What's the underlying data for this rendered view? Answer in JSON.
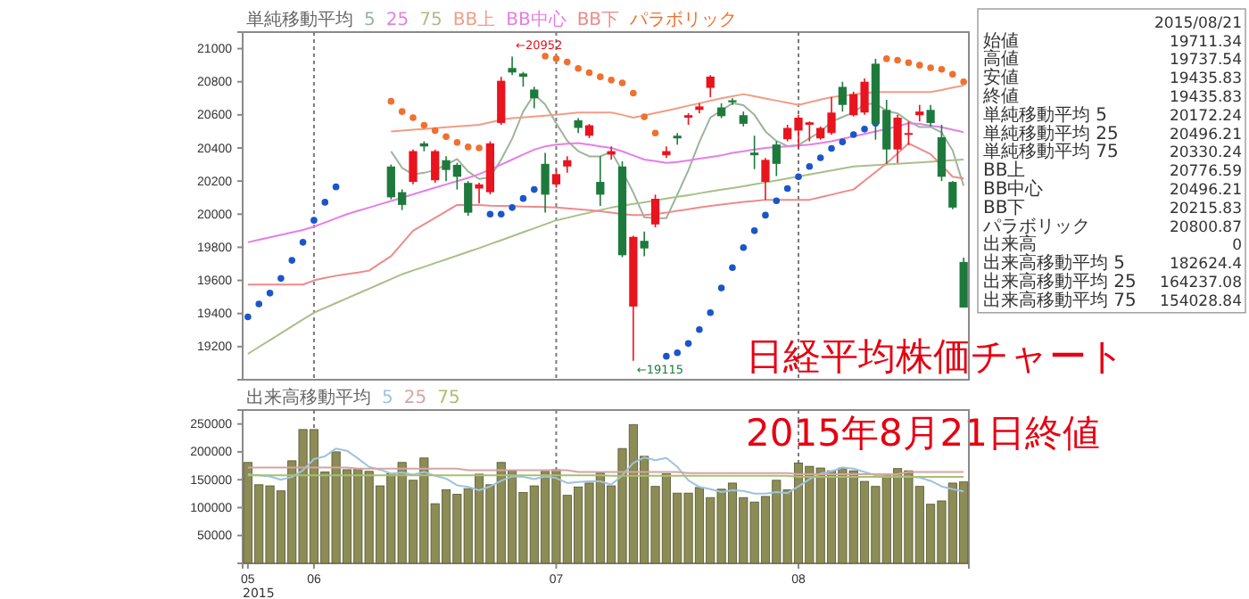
{
  "chart_data": [
    {
      "type": "candlestick",
      "title": "日経平均株価チャート",
      "subtitle": "2015年8月21日終値",
      "categories": [
        "05",
        null,
        null,
        null,
        null,
        null,
        "06",
        null,
        null,
        null,
        null,
        null,
        null,
        null,
        null,
        null,
        null,
        null,
        null,
        null,
        null,
        null,
        null,
        null,
        null,
        null,
        null,
        null,
        "07",
        null,
        null,
        null,
        null,
        null,
        null,
        null,
        null,
        null,
        null,
        null,
        null,
        null,
        null,
        null,
        null,
        null,
        null,
        null,
        null,
        null,
        "08",
        null,
        null,
        null,
        null,
        null,
        null,
        null,
        null,
        null,
        null,
        null,
        null,
        null,
        null,
        null
      ],
      "tick_labels": "y",
      "ylim": [
        19000,
        21100
      ],
      "yticks": [
        19200,
        19400,
        19600,
        19800,
        20000,
        20200,
        20400,
        20600,
        20800,
        21000
      ],
      "ohlc": [
        null,
        null,
        null,
        null,
        null,
        null,
        null,
        null,
        null,
        null,
        null,
        null,
        null,
        [
          20288,
          20300,
          20090,
          20102
        ],
        [
          20133,
          20150,
          20025,
          20056
        ],
        [
          20195,
          20390,
          20180,
          20381
        ],
        [
          20428,
          20440,
          20380,
          20409
        ],
        [
          20205,
          20390,
          20190,
          20381
        ],
        [
          20326,
          20350,
          20200,
          20267
        ],
        [
          20298,
          20310,
          20149,
          20226
        ],
        [
          20189,
          20200,
          19990,
          20009
        ],
        [
          20155,
          20190,
          20065,
          20180
        ],
        [
          20133,
          20440,
          20120,
          20428
        ],
        [
          20551,
          20830,
          20540,
          20806
        ],
        [
          20883,
          20952,
          20840,
          20856
        ],
        [
          20850,
          20860,
          20770,
          20830
        ],
        [
          20753,
          20770,
          20640,
          20700
        ],
        [
          20304,
          20370,
          20010,
          20118
        ],
        [
          20180,
          20270,
          20160,
          20242
        ],
        [
          20288,
          20350,
          20250,
          20326
        ],
        [
          20567,
          20580,
          20490,
          20521
        ],
        [
          20474,
          20545,
          20460,
          20537
        ],
        [
          20195,
          20350,
          20050,
          20118
        ],
        [
          20360,
          20410,
          20330,
          20381
        ],
        [
          20288,
          20319,
          19740,
          19752
        ],
        [
          19442,
          19870,
          19115,
          19863
        ],
        [
          19839,
          19895,
          19746,
          19793
        ],
        [
          19938,
          20118,
          19920,
          20093
        ],
        [
          20356,
          20410,
          20340,
          20381
        ],
        [
          20474,
          20490,
          20420,
          20458
        ],
        [
          20583,
          20610,
          20540,
          20598
        ],
        [
          20630,
          20670,
          20610,
          20651
        ],
        [
          20763,
          20840,
          20707,
          20831
        ],
        [
          20645,
          20670,
          20580,
          20592
        ],
        [
          20688,
          20700,
          20660,
          20676
        ],
        [
          20598,
          20620,
          20530,
          20546
        ],
        [
          20372,
          20474,
          20272,
          20356
        ],
        [
          20195,
          20340,
          20087,
          20328
        ],
        [
          20421,
          20440,
          20230,
          20304
        ],
        [
          20453,
          20540,
          20440,
          20521
        ],
        [
          20505,
          20600,
          20400,
          20583
        ],
        [
          20540,
          20560,
          20440,
          20555
        ],
        [
          20458,
          20530,
          20450,
          20521
        ],
        [
          20490,
          20707,
          20480,
          20614
        ],
        [
          20769,
          20800,
          20620,
          20660
        ],
        [
          20598,
          20740,
          20590,
          20725
        ],
        [
          20614,
          20820,
          20600,
          20800
        ],
        [
          20909,
          20939,
          20450,
          20546
        ],
        [
          20630,
          20691,
          20304,
          20391
        ],
        [
          20391,
          20600,
          20310,
          20583
        ],
        [
          20480,
          20560,
          20420,
          20490
        ],
        [
          20598,
          20660,
          20560,
          20620
        ],
        [
          20630,
          20660,
          20530,
          20551
        ],
        [
          20465,
          20540,
          20200,
          20226
        ],
        [
          20195,
          20200,
          20030,
          20040
        ],
        [
          19711.34,
          19737.54,
          19435.83,
          19435.83
        ]
      ],
      "colors": [
        null,
        null,
        null,
        null,
        null,
        null,
        null,
        null,
        null,
        null,
        null,
        null,
        null,
        "#1e7a3c",
        "#1e7a3c",
        "#e8141e",
        "#1e7a3c",
        "#e8141e",
        "#1e7a3c",
        "#1e7a3c",
        "#1e7a3c",
        "#e8141e",
        "#e8141e",
        "#e8141e",
        "#1e7a3c",
        "#1e7a3c",
        "#1e7a3c",
        "#1e7a3c",
        "#e8141e",
        "#e8141e",
        "#1e7a3c",
        "#e8141e",
        "#1e7a3c",
        "#e8141e",
        "#1e7a3c",
        "#e8141e",
        "#1e7a3c",
        "#e8141e",
        "#e8141e",
        "#1e7a3c",
        "#e8141e",
        "#e8141e",
        "#e8141e",
        "#1e7a3c",
        "#1e7a3c",
        "#1e7a3c",
        "#1e7a3c",
        "#e8141e",
        "#1e7a3c",
        "#e8141e",
        "#e8141e",
        "#e8141e",
        "#e8141e",
        "#e8141e",
        "#1e7a3c",
        "#e8141e",
        "#e8141e",
        "#1e7a3c",
        "#1e7a3c",
        "#e8141e",
        "#e8141e",
        "#e8141e",
        "#1e7a3c",
        "#1e7a3c",
        "#1e7a3c",
        "#1e7a3c"
      ],
      "series": [
        {
          "name": "5",
          "type": "line",
          "color": "#9db39d",
          "values": [
            null,
            null,
            null,
            null,
            null,
            null,
            null,
            null,
            null,
            null,
            null,
            null,
            null,
            20380,
            20280,
            20240,
            20250,
            20266,
            20299,
            20333,
            20258,
            20213,
            20222,
            20330,
            20456,
            20620,
            20724,
            20662,
            20549,
            20443,
            20381,
            20349,
            20349,
            20377,
            20262,
            20130,
            19981,
            19976,
            19976,
            20118,
            20265,
            20436,
            20584,
            20626,
            20670,
            20659,
            20600,
            20500,
            20442,
            20411,
            20418,
            20458,
            20497,
            20559,
            20587,
            20615,
            20664,
            20669,
            20624,
            20609,
            20562,
            20526,
            20527,
            20494,
            20385,
            20172
          ]
        },
        {
          "name": "25",
          "type": "line",
          "color": "#e67ee6",
          "values": [
            19830,
            19845,
            19860,
            19875,
            19890,
            19905,
            19925,
            19950,
            19975,
            20000,
            20020,
            20040,
            20060,
            20080,
            20100,
            20120,
            20140,
            20160,
            20180,
            20200,
            20220,
            20242,
            20270,
            20300,
            20330,
            20360,
            20390,
            20410,
            20420,
            20425,
            20430,
            20420,
            20410,
            20400,
            20380,
            20355,
            20330,
            20320,
            20310,
            20315,
            20325,
            20335,
            20345,
            20355,
            20370,
            20380,
            20390,
            20400,
            20405,
            20410,
            20415,
            20420,
            20430,
            20440,
            20455,
            20470,
            20485,
            20500,
            20515,
            20530,
            20550,
            20545,
            20535,
            20525,
            20510,
            20496
          ]
        },
        {
          "name": "75",
          "type": "line",
          "color": "#a9bf8a",
          "values": [
            19156,
            19198,
            19239,
            19281,
            19322,
            19364,
            19405,
            19434,
            19463,
            19492,
            19521,
            19550,
            19579,
            19608,
            19637,
            19660,
            19682,
            19705,
            19727,
            19750,
            19773,
            19795,
            19819,
            19843,
            19867,
            19891,
            19915,
            19939,
            19963,
            19978,
            19994,
            20009,
            20025,
            20040,
            20051,
            20062,
            20072,
            20083,
            20094,
            20105,
            20115,
            20126,
            20137,
            20148,
            20158,
            20169,
            20180,
            20192,
            20204,
            20216,
            20228,
            20240,
            20252,
            20264,
            20276,
            20288,
            20292,
            20296,
            20301,
            20305,
            20309,
            20313,
            20317,
            20322,
            20326,
            20330
          ]
        },
        {
          "name": "BB上",
          "type": "line",
          "color": "#f29c86",
          "values": [
            null,
            null,
            null,
            null,
            null,
            null,
            null,
            null,
            null,
            null,
            null,
            null,
            null,
            20500,
            20505,
            20510,
            20515,
            20520,
            20525,
            20530,
            20535,
            20540,
            20555,
            20570,
            20580,
            20585,
            20590,
            20595,
            20600,
            20607,
            20614,
            20614,
            20614,
            20614,
            20600,
            20583,
            20597,
            20611,
            20625,
            20640,
            20655,
            20670,
            20685,
            20700,
            20712,
            20725,
            20712,
            20699,
            20686,
            20673,
            20660,
            20676,
            20692,
            20707,
            20715,
            20723,
            20731,
            20738,
            20738,
            20738,
            20738,
            20738,
            20738,
            20750,
            20765,
            20777
          ]
        },
        {
          "name": "BB下",
          "type": "line",
          "color": "#ee8a8a",
          "values": [
            19575,
            19575,
            19575,
            19575,
            19575,
            19575,
            19600,
            19615,
            19628,
            19638,
            19648,
            19659,
            19703,
            19746,
            19823,
            19900,
            19939,
            19978,
            20017,
            20056,
            20056,
            20056,
            20052,
            20050,
            20048,
            20046,
            20045,
            20043,
            20040,
            20035,
            20030,
            20025,
            20018,
            20009,
            20000,
            19995,
            19995,
            20000,
            20009,
            20020,
            20030,
            20040,
            20050,
            20058,
            20066,
            20074,
            20080,
            20087,
            20087,
            20087,
            20087,
            20087,
            20103,
            20118,
            20134,
            20149,
            20202,
            20255,
            20307,
            20367,
            20428,
            20395,
            20363,
            20295,
            20226,
            20216
          ]
        },
        {
          "name": "パラボリック",
          "type": "scatter",
          "marker": "circle",
          "color": "#f07030",
          "values": [
            19380,
            19458,
            19523,
            19612,
            19721,
            19830,
            19963,
            20072,
            20165,
            null,
            null,
            null,
            null,
            20682,
            20620,
            20583,
            20537,
            20505,
            20468,
            20434,
            20406,
            20400,
            20000,
            20000,
            20040,
            20095,
            20149,
            20955,
            20940,
            20920,
            20880,
            20855,
            20830,
            20810,
            20793,
            20731,
            20588,
            20490,
            19142,
            19163,
            19219,
            19303,
            19405,
            19554,
            19677,
            19798,
            19900,
            19994,
            20081,
            20155,
            20226,
            20288,
            20341,
            20397,
            20437,
            20481,
            20514,
            20549,
            20939,
            20930,
            20915,
            20900,
            20885,
            20875,
            20845,
            20800
          ],
          "colors": [
            "#1a56c8",
            "#1a56c8",
            "#1a56c8",
            "#1a56c8",
            "#1a56c8",
            "#1a56c8",
            "#1a56c8",
            "#1a56c8",
            "#1a56c8",
            null,
            null,
            null,
            null,
            "#f07030",
            "#f07030",
            "#f07030",
            "#f07030",
            "#f07030",
            "#f07030",
            "#f07030",
            "#f07030",
            "#f07030",
            "#1a56c8",
            "#1a56c8",
            "#1a56c8",
            "#1a56c8",
            "#1a56c8",
            "#f07030",
            "#f07030",
            "#f07030",
            "#f07030",
            "#f07030",
            "#f07030",
            "#f07030",
            "#f07030",
            "#f07030",
            "#f07030",
            "#f07030",
            "#1a56c8",
            "#1a56c8",
            "#1a56c8",
            "#1a56c8",
            "#1a56c8",
            "#1a56c8",
            "#1a56c8",
            "#1a56c8",
            "#1a56c8",
            "#1a56c8",
            "#1a56c8",
            "#1a56c8",
            "#1a56c8",
            "#1a56c8",
            "#1a56c8",
            "#1a56c8",
            "#1a56c8",
            "#1a56c8",
            "#1a56c8",
            "#1a56c8",
            "#f07030",
            "#f07030",
            "#f07030",
            "#f07030",
            "#f07030",
            "#f07030",
            "#f07030",
            "#f07030"
          ]
        }
      ],
      "legend": "top left",
      "legend_title": "単純移動平均",
      "ref_lines": [
        {
          "axis": "x",
          "value": "06",
          "line_style": "dotted",
          "color": "#7a7a7a"
        },
        {
          "axis": "x",
          "value": "07",
          "line_style": "dotted",
          "color": "#7a7a7a"
        },
        {
          "axis": "x",
          "value": "08",
          "line_style": "dotted",
          "color": "#7a7a7a"
        }
      ],
      "annotations": [
        "BB中心",
        "2015/08/21",
        "始値 19711.34",
        "高値 19737.54",
        "安値 19435.83",
        "終値 19435.83",
        "単純移動平均 5 20172.24",
        "単純移動平均 25 20496.21",
        "単純移動平均 75 20330.24",
        "BB上 20776.59",
        "BB中心 20496.21",
        "BB下 20215.83",
        "パラボリック 20800.87",
        "出来高 0",
        "出来高移動平均 5 182624.4",
        "出来高移動平均 25 164237.08",
        "出来高移動平均 75 154028.84",
        {
          "text": "←20952",
          "y": 20952
        },
        {
          "text": "←19115",
          "y": 19115
        }
      ]
    },
    {
      "type": "bar",
      "categories": [
        "05",
        null,
        null,
        null,
        null,
        null,
        "06",
        null,
        null,
        null,
        null,
        null,
        null,
        null,
        null,
        null,
        null,
        null,
        null,
        null,
        null,
        null,
        null,
        null,
        null,
        null,
        null,
        null,
        "07",
        null,
        null,
        null,
        null,
        null,
        null,
        null,
        null,
        null,
        null,
        null,
        null,
        null,
        null,
        null,
        null,
        null,
        null,
        null,
        null,
        null,
        "08",
        null,
        null,
        null,
        null,
        null,
        null,
        null,
        null,
        null,
        null,
        null,
        null,
        null,
        null,
        null
      ],
      "xlabel": "2015",
      "ylim": [
        0,
        275000
      ],
      "yticks": [
        50000,
        100000,
        150000,
        200000,
        250000
      ],
      "series": [
        {
          "type": "bar",
          "color": "#8c8c56",
          "values": [
            181000,
            141000,
            139000,
            130000,
            184000,
            240000,
            240000,
            164000,
            200000,
            168000,
            170000,
            165000,
            139000,
            161000,
            181000,
            149000,
            189000,
            107000,
            132000,
            124000,
            134000,
            160000,
            141000,
            181000,
            166000,
            127000,
            139000,
            165000,
            168000,
            122000,
            137000,
            144000,
            162000,
            139000,
            206000,
            249000,
            192000,
            138000,
            161000,
            126000,
            126000,
            136000,
            118000,
            133000,
            144000,
            118000,
            110000,
            120000,
            149000,
            132000,
            180000,
            174000,
            171000,
            166000,
            171000,
            166000,
            147000,
            138000,
            160000,
            170000,
            166000,
            138000,
            106000,
            112000,
            144000,
            146000
          ]
        },
        {
          "name": "5",
          "type": "line",
          "color": "#9fc3dc",
          "values": [
            160000,
            158000,
            156000,
            150000,
            155000,
            167000,
            187000,
            192000,
            206000,
            202000,
            188000,
            173000,
            168000,
            161000,
            163000,
            159000,
            164000,
            157000,
            152000,
            140000,
            137000,
            131000,
            138000,
            148000,
            156000,
            155000,
            151000,
            156000,
            153000,
            144000,
            146000,
            147000,
            147000,
            141000,
            158000,
            180000,
            190000,
            185000,
            189000,
            173000,
            149000,
            137000,
            133000,
            128000,
            131000,
            130000,
            125000,
            125000,
            128000,
            126000,
            138000,
            151000,
            161000,
            165000,
            172000,
            170000,
            164000,
            158000,
            156000,
            156000,
            156000,
            154000,
            148000,
            138000,
            133000,
            129000
          ]
        },
        {
          "name": "25",
          "type": "line",
          "color": "#d6a4a4",
          "values": [
            172000,
            172000,
            172000,
            172000,
            172000,
            172000,
            172000,
            172000,
            172000,
            172000,
            170000,
            170000,
            170000,
            170000,
            170000,
            170000,
            170000,
            170000,
            170000,
            170000,
            167000,
            167000,
            167000,
            167000,
            167000,
            167000,
            167000,
            167000,
            167000,
            167000,
            164000,
            164000,
            164000,
            164000,
            164000,
            164000,
            164000,
            164000,
            164000,
            164000,
            162000,
            162000,
            162000,
            162000,
            162000,
            162000,
            162000,
            162000,
            162000,
            162000,
            160000,
            160000,
            160000,
            160000,
            160000,
            160000,
            160000,
            160000,
            160000,
            160000,
            164000,
            164000,
            164000,
            164000,
            164000,
            164000
          ]
        },
        {
          "name": "75",
          "type": "line",
          "color": "#a8c070",
          "values": [
            158000,
            158000,
            158000,
            158000,
            158000,
            158000,
            158000,
            158000,
            158000,
            158000,
            158000,
            158000,
            158000,
            158000,
            158000,
            158000,
            158000,
            158000,
            158000,
            158000,
            158000,
            158000,
            158000,
            158000,
            158000,
            158000,
            158000,
            158000,
            158000,
            158000,
            158000,
            158000,
            158000,
            157000,
            157000,
            157000,
            157000,
            157000,
            157000,
            157000,
            157000,
            157000,
            157000,
            157000,
            157000,
            157000,
            157000,
            157000,
            157000,
            157000,
            155000,
            155000,
            155000,
            155000,
            155000,
            155000,
            155000,
            155000,
            155000,
            155000,
            155000,
            155000,
            155000,
            155000,
            155000,
            155000
          ]
        }
      ],
      "legend": "top left",
      "legend_title": "出来高移動平均",
      "ref_lines": [
        {
          "axis": "x",
          "value": "06",
          "line_style": "dotted",
          "color": "#7a7a7a"
        },
        {
          "axis": "x",
          "value": "07",
          "line_style": "dotted",
          "color": "#7a7a7a"
        },
        {
          "axis": "x",
          "value": "08",
          "line_style": "dotted",
          "color": "#7a7a7a"
        }
      ]
    }
  ]
}
